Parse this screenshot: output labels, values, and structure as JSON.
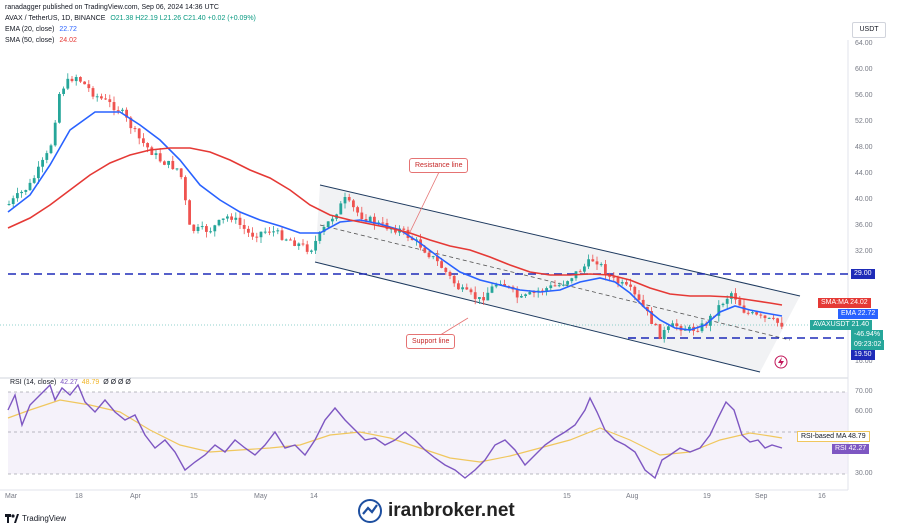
{
  "header": {
    "published": "ranadagger published on TradingView.com, Sep 06, 2024 14:36 UTC",
    "symbol": "AVAX / TetherUS, 1D, BINANCE",
    "ohlc": "O21.38 H22.19 L21.26 C21.40 +0.02 (+0.09%)",
    "ema_label": "EMA (20, close)",
    "ema_value": "22.72",
    "sma_label": "SMA (50, close)",
    "sma_value": "24.02",
    "currency": "USDT"
  },
  "price_axis": [
    "64.00",
    "60.00",
    "56.00",
    "52.00",
    "48.00",
    "44.00",
    "40.00",
    "36.00",
    "32.00",
    "28.00",
    "16.00"
  ],
  "price_tags": {
    "level_high": "29.00",
    "sma": "SMA:MA 24.02",
    "ema": "EMA 22.72",
    "symbol": "AVAXUSDT 21.40",
    "change": "-46.94%",
    "timer": "09:23:02",
    "level_low": "19.50"
  },
  "annotations": {
    "resistance": "Resistance line",
    "support": "Support line"
  },
  "rsi": {
    "label": "RSI (14, close)",
    "value1": "42.27",
    "value2": "48.79",
    "extra": "Ø Ø Ø Ø",
    "axis": [
      "70.00",
      "60.00",
      "30.00"
    ],
    "tag_ma": "RSI-based MA 48.79",
    "tag_rsi": "RSI 42.27"
  },
  "time_axis": [
    "Mar",
    "18",
    "Apr",
    "15",
    "May",
    "14",
    "15",
    "Aug",
    "19",
    "Sep",
    "16"
  ],
  "footer": {
    "brand": "TradingView",
    "watermark": "iranbroker.net"
  },
  "colors": {
    "up": "#26a69a",
    "down": "#ef5350",
    "ema": "#2962ff",
    "sma": "#e53935",
    "level": "#1e2bb8",
    "rsi": "#7e57c2",
    "rsi_ma": "#f0c75e"
  },
  "icons": [
    "tradingview-logo-icon",
    "watermark-logo-icon",
    "flash-icon"
  ]
}
